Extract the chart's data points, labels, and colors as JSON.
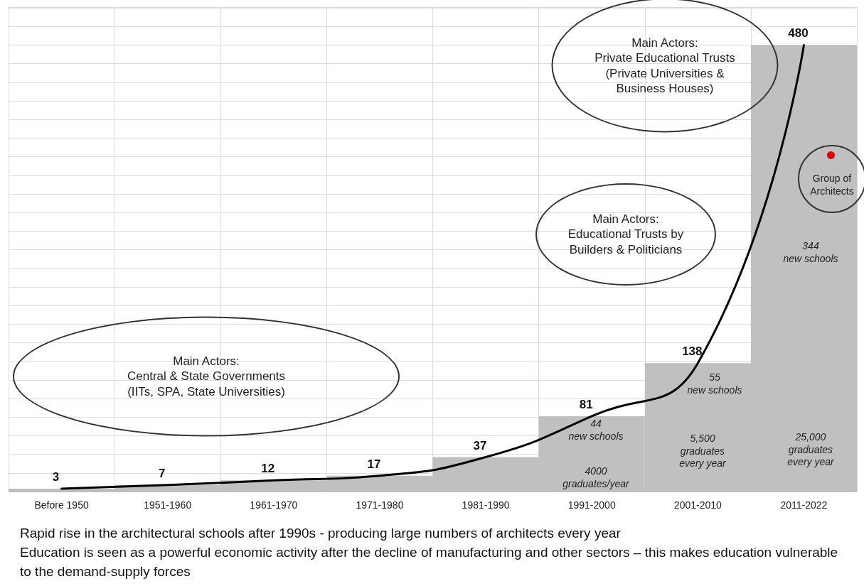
{
  "chart_data": {
    "type": "bar",
    "categories": [
      "Before 1950",
      "1951-1960",
      "1961-1970",
      "1971-1980",
      "1981-1990",
      "1991-2000",
      "2001-2010",
      "2011-2022"
    ],
    "series": [
      {
        "color": "#c0c0c0",
        "values": [
          3,
          7,
          12,
          17,
          37,
          81,
          138,
          480
        ]
      },
      {
        "type": "line",
        "color": "#000000",
        "values": [
          3,
          7,
          12,
          17,
          37,
          81,
          138,
          480
        ],
        "value_labels": [
          "3",
          "7",
          "12",
          "17",
          "37",
          "81",
          "138",
          "480"
        ]
      }
    ],
    "grid": true,
    "annotations": [
      "Main Actors:\nCentral & State Governments\n(IITs, SPA, State Universities)",
      "Main Actors:\nEducational Trusts by\nBuilders & Politicians",
      "Main Actors:\nPrivate Educational Trusts\n(Private Universities &\nBusiness Houses)",
      "Group of\nArchitects",
      "44\nnew schools",
      "4000\ngraduates/year",
      "55\nnew schools",
      "5,500\ngraduates\nevery year",
      "344\nnew schools",
      "25,000\ngraduates\nevery year",
      "Rapid rise in the architectural schools after 1990s - producing large numbers of architects every year",
      "Education is seen as a powerful economic activity after the decline of manufacturing and other sectors – this makes education vulnerable to the demand-supply forces"
    ]
  }
}
